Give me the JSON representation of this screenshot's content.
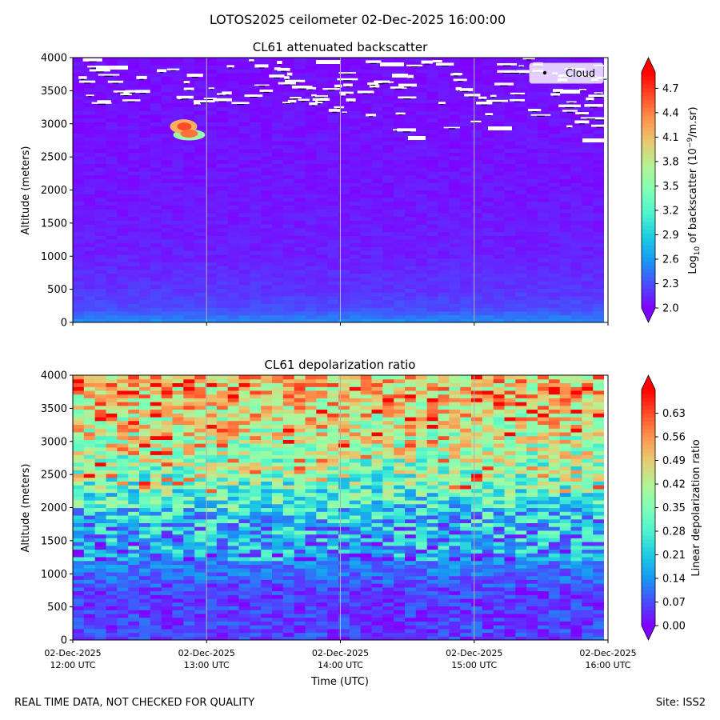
{
  "figure": {
    "suptitle": "LOTOS2025 ceilometer 02-Dec-2025 16:00:00",
    "footer_left": "REAL TIME DATA, NOT CHECKED FOR QUALITY",
    "footer_right": "Site: ISS2"
  },
  "colors": {
    "colormap": [
      "#8000ff",
      "#4a4cfd",
      "#1996f3",
      "#1ccbe1",
      "#4df3ce",
      "#80ffb4",
      "#b2f396",
      "#e6cb72",
      "#ff964f",
      "#ff4c27",
      "#ff0000"
    ],
    "grid": "#b0b0b0",
    "cloud": "#ffffff"
  },
  "chart_data": [
    {
      "type": "heatmap",
      "title": "CL61 attenuated backscatter",
      "xlabel": "",
      "ylabel": "Altitude (meters)",
      "x_range": [
        "02-Dec-2025 12:00 UTC",
        "02-Dec-2025 16:00 UTC"
      ],
      "ylim": [
        0,
        4000
      ],
      "y_ticks": [
        "0",
        "500",
        "1000",
        "1500",
        "2000",
        "2500",
        "3000",
        "3500",
        "4000"
      ],
      "x_gridlines": true,
      "colorbar": {
        "label_base": "Log",
        "label_sub": "10",
        "label_mid": " of backscatter (10",
        "label_sup": "−9",
        "label_end": "/m.sr)",
        "range": [
          2.0,
          4.9
        ],
        "ticks": [
          "2.0",
          "2.3",
          "2.6",
          "2.9",
          "3.2",
          "3.5",
          "3.8",
          "4.1",
          "4.4",
          "4.7"
        ],
        "extend": "both"
      },
      "legend": {
        "entries": [
          "Cloud"
        ],
        "loc": "upper right"
      },
      "profile": [
        {
          "alt": 0,
          "value": 2.55
        },
        {
          "alt": 200,
          "value": 2.3
        },
        {
          "alt": 500,
          "value": 2.2
        },
        {
          "alt": 1000,
          "value": 2.12
        },
        {
          "alt": 2000,
          "value": 2.08
        },
        {
          "alt": 4000,
          "value": 2.05
        }
      ],
      "aerosol_feature": {
        "time_utc": "12:45",
        "alt_min": 2780,
        "alt_max": 3080,
        "value": 3.7
      }
    },
    {
      "type": "heatmap",
      "title": "CL61 depolarization ratio",
      "xlabel": "Time (UTC)",
      "ylabel": "Altitude (meters)",
      "x_ticks": [
        {
          "date": "02-Dec-2025",
          "time": "12:00 UTC"
        },
        {
          "date": "02-Dec-2025",
          "time": "13:00 UTC"
        },
        {
          "date": "02-Dec-2025",
          "time": "14:00 UTC"
        },
        {
          "date": "02-Dec-2025",
          "time": "15:00 UTC"
        },
        {
          "date": "02-Dec-2025",
          "time": "16:00 UTC"
        }
      ],
      "ylim": [
        0,
        4000
      ],
      "y_ticks": [
        "0",
        "500",
        "1000",
        "1500",
        "2000",
        "2500",
        "3000",
        "3500",
        "4000"
      ],
      "x_gridlines": true,
      "colorbar": {
        "label": "Linear depolarization ratio",
        "range": [
          0.0,
          0.7
        ],
        "ticks": [
          "0.00",
          "0.07",
          "0.14",
          "0.21",
          "0.28",
          "0.35",
          "0.42",
          "0.49",
          "0.56",
          "0.63"
        ],
        "extend": "both"
      },
      "profile": [
        {
          "alt": 0,
          "value": 0.06
        },
        {
          "alt": 700,
          "value": 0.05
        },
        {
          "alt": 1200,
          "value": 0.13
        },
        {
          "alt": 1800,
          "value": 0.2
        },
        {
          "alt": 2300,
          "value": 0.32
        },
        {
          "alt": 2900,
          "value": 0.42
        },
        {
          "alt": 3500,
          "value": 0.48
        },
        {
          "alt": 4000,
          "value": 0.5
        }
      ]
    }
  ]
}
